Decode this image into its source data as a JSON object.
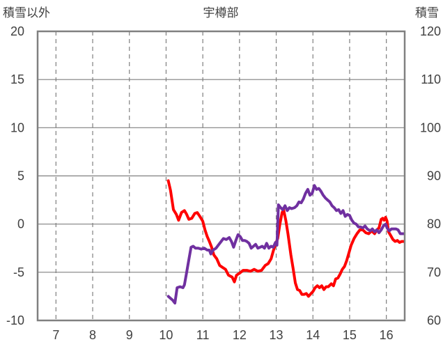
{
  "chart_data": {
    "type": "line",
    "title": "宇樽部",
    "ylabel_left": "積雪以外",
    "ylabel_right": "積雪",
    "x_ticks": [
      "7",
      "8",
      "9",
      "10",
      "11",
      "12",
      "13",
      "14",
      "15",
      "16"
    ],
    "xlim": [
      6.5,
      16.5
    ],
    "y_left": {
      "lim": [
        -10,
        20
      ],
      "ticks": [
        "20",
        "15",
        "10",
        "5",
        "0",
        "-5",
        "-10"
      ]
    },
    "y_right": {
      "lim": [
        60,
        120
      ],
      "ticks": [
        "120",
        "110",
        "100",
        "90",
        "80",
        "70",
        "60"
      ]
    },
    "grid": true,
    "series": [
      {
        "color": "#ff0000",
        "axis": "left",
        "points": [
          [
            10.06,
            4.5
          ],
          [
            10.12,
            3.5
          ],
          [
            10.2,
            1.5
          ],
          [
            10.28,
            1.0
          ],
          [
            10.34,
            0.4
          ],
          [
            10.42,
            1.2
          ],
          [
            10.5,
            1.4
          ],
          [
            10.56,
            1.0
          ],
          [
            10.62,
            0.5
          ],
          [
            10.7,
            0.6
          ],
          [
            10.78,
            1.1
          ],
          [
            10.85,
            1.2
          ],
          [
            10.92,
            0.8
          ],
          [
            11.0,
            0.3
          ],
          [
            11.06,
            -0.6
          ],
          [
            11.12,
            -1.3
          ],
          [
            11.18,
            -1.8
          ],
          [
            11.24,
            -2.4
          ],
          [
            11.3,
            -3.2
          ],
          [
            11.38,
            -3.6
          ],
          [
            11.46,
            -4.3
          ],
          [
            11.54,
            -4.5
          ],
          [
            11.62,
            -4.7
          ],
          [
            11.7,
            -5.3
          ],
          [
            11.8,
            -5.5
          ],
          [
            11.86,
            -6.0
          ],
          [
            11.92,
            -5.3
          ],
          [
            12.0,
            -5.1
          ],
          [
            12.1,
            -4.8
          ],
          [
            12.2,
            -4.8
          ],
          [
            12.3,
            -4.9
          ],
          [
            12.4,
            -4.7
          ],
          [
            12.5,
            -4.9
          ],
          [
            12.6,
            -4.8
          ],
          [
            12.7,
            -4.3
          ],
          [
            12.78,
            -4.1
          ],
          [
            12.86,
            -3.6
          ],
          [
            12.92,
            -2.8
          ],
          [
            12.98,
            -2.1
          ],
          [
            13.04,
            -1.5
          ],
          [
            13.1,
            0.0
          ],
          [
            13.16,
            1.2
          ],
          [
            13.2,
            1.5
          ],
          [
            13.26,
            0.4
          ],
          [
            13.32,
            -1.0
          ],
          [
            13.4,
            -3.2
          ],
          [
            13.46,
            -4.6
          ],
          [
            13.52,
            -6.1
          ],
          [
            13.58,
            -6.8
          ],
          [
            13.64,
            -6.9
          ],
          [
            13.7,
            -7.3
          ],
          [
            13.76,
            -7.3
          ],
          [
            13.82,
            -7.2
          ],
          [
            13.88,
            -7.5
          ],
          [
            13.95,
            -7.2
          ],
          [
            14.0,
            -7.0
          ],
          [
            14.06,
            -6.6
          ],
          [
            14.12,
            -6.4
          ],
          [
            14.18,
            -6.6
          ],
          [
            14.24,
            -6.4
          ],
          [
            14.3,
            -6.8
          ],
          [
            14.36,
            -6.5
          ],
          [
            14.42,
            -6.5
          ],
          [
            14.5,
            -6.2
          ],
          [
            14.56,
            -6.4
          ],
          [
            14.62,
            -5.7
          ],
          [
            14.68,
            -5.6
          ],
          [
            14.74,
            -5.2
          ],
          [
            14.8,
            -4.7
          ],
          [
            14.86,
            -4.4
          ],
          [
            14.92,
            -3.8
          ],
          [
            14.98,
            -3.0
          ],
          [
            15.04,
            -2.2
          ],
          [
            15.12,
            -1.5
          ],
          [
            15.2,
            -1.0
          ],
          [
            15.28,
            -0.6
          ],
          [
            15.36,
            -0.6
          ],
          [
            15.44,
            -0.9
          ],
          [
            15.52,
            -1.0
          ],
          [
            15.6,
            -0.7
          ],
          [
            15.68,
            -1.0
          ],
          [
            15.74,
            -0.6
          ],
          [
            15.8,
            -0.4
          ],
          [
            15.86,
            0.5
          ],
          [
            15.9,
            0.6
          ],
          [
            15.94,
            0.4
          ],
          [
            15.98,
            0.7
          ],
          [
            16.02,
            0.3
          ],
          [
            16.06,
            -0.8
          ],
          [
            16.12,
            -1.2
          ],
          [
            16.18,
            -1.6
          ],
          [
            16.24,
            -1.8
          ],
          [
            16.3,
            -1.7
          ],
          [
            16.36,
            -1.9
          ],
          [
            16.42,
            -1.8
          ],
          [
            16.47,
            -1.8
          ]
        ]
      },
      {
        "color": "#7030a0",
        "axis": "right",
        "points": [
          [
            10.06,
            65.0
          ],
          [
            10.12,
            64.6
          ],
          [
            10.18,
            64.2
          ],
          [
            10.24,
            63.6
          ],
          [
            10.3,
            66.8
          ],
          [
            10.38,
            67.0
          ],
          [
            10.46,
            66.8
          ],
          [
            10.5,
            67.4
          ],
          [
            10.56,
            70.0
          ],
          [
            10.62,
            72.6
          ],
          [
            10.68,
            75.2
          ],
          [
            10.74,
            75.4
          ],
          [
            10.8,
            75.0
          ],
          [
            10.88,
            75.0
          ],
          [
            10.96,
            74.8
          ],
          [
            11.04,
            75.0
          ],
          [
            11.12,
            74.6
          ],
          [
            11.18,
            74.6
          ],
          [
            11.22,
            73.8
          ],
          [
            11.28,
            74.6
          ],
          [
            11.36,
            75.0
          ],
          [
            11.42,
            75.6
          ],
          [
            11.5,
            76.4
          ],
          [
            11.56,
            77.0
          ],
          [
            11.64,
            76.8
          ],
          [
            11.72,
            77.2
          ],
          [
            11.78,
            76.4
          ],
          [
            11.84,
            75.2
          ],
          [
            11.9,
            76.6
          ],
          [
            11.96,
            77.8
          ],
          [
            12.02,
            77.4
          ],
          [
            12.08,
            76.6
          ],
          [
            12.14,
            76.6
          ],
          [
            12.2,
            76.4
          ],
          [
            12.26,
            76.0
          ],
          [
            12.32,
            75.0
          ],
          [
            12.38,
            75.4
          ],
          [
            12.44,
            75.8
          ],
          [
            12.5,
            75.0
          ],
          [
            12.56,
            75.2
          ],
          [
            12.62,
            75.4
          ],
          [
            12.68,
            75.0
          ],
          [
            12.74,
            76.0
          ],
          [
            12.8,
            75.0
          ],
          [
            12.86,
            75.4
          ],
          [
            12.92,
            75.2
          ],
          [
            12.98,
            76.2
          ],
          [
            13.02,
            75.6
          ],
          [
            13.06,
            84.0
          ],
          [
            13.12,
            83.4
          ],
          [
            13.18,
            83.0
          ],
          [
            13.24,
            83.8
          ],
          [
            13.3,
            82.8
          ],
          [
            13.36,
            83.4
          ],
          [
            13.42,
            83.2
          ],
          [
            13.5,
            83.4
          ],
          [
            13.56,
            83.8
          ],
          [
            13.62,
            84.6
          ],
          [
            13.68,
            84.4
          ],
          [
            13.74,
            85.2
          ],
          [
            13.8,
            86.4
          ],
          [
            13.86,
            87.2
          ],
          [
            13.92,
            86.0
          ],
          [
            13.98,
            86.4
          ],
          [
            14.04,
            88.0
          ],
          [
            14.1,
            87.2
          ],
          [
            14.16,
            87.4
          ],
          [
            14.22,
            86.8
          ],
          [
            14.28,
            86.0
          ],
          [
            14.34,
            85.4
          ],
          [
            14.4,
            85.0
          ],
          [
            14.46,
            84.6
          ],
          [
            14.52,
            83.8
          ],
          [
            14.58,
            83.4
          ],
          [
            14.64,
            82.8
          ],
          [
            14.7,
            83.0
          ],
          [
            14.76,
            82.2
          ],
          [
            14.82,
            82.8
          ],
          [
            14.88,
            81.6
          ],
          [
            14.94,
            82.0
          ],
          [
            15.0,
            81.8
          ],
          [
            15.06,
            80.8
          ],
          [
            15.12,
            80.2
          ],
          [
            15.18,
            80.0
          ],
          [
            15.24,
            79.4
          ],
          [
            15.3,
            79.4
          ],
          [
            15.36,
            79.2
          ],
          [
            15.42,
            79.6
          ],
          [
            15.48,
            79.0
          ],
          [
            15.56,
            78.6
          ],
          [
            15.62,
            79.0
          ],
          [
            15.68,
            78.4
          ],
          [
            15.74,
            78.8
          ],
          [
            15.8,
            78.2
          ],
          [
            15.86,
            78.8
          ],
          [
            15.92,
            79.6
          ],
          [
            15.98,
            80.0
          ],
          [
            16.02,
            79.2
          ],
          [
            16.08,
            78.6
          ],
          [
            16.14,
            79.0
          ],
          [
            16.2,
            79.0
          ],
          [
            16.26,
            79.0
          ],
          [
            16.32,
            78.8
          ],
          [
            16.38,
            78.0
          ],
          [
            16.44,
            78.0
          ],
          [
            16.47,
            78.0
          ]
        ]
      }
    ]
  }
}
